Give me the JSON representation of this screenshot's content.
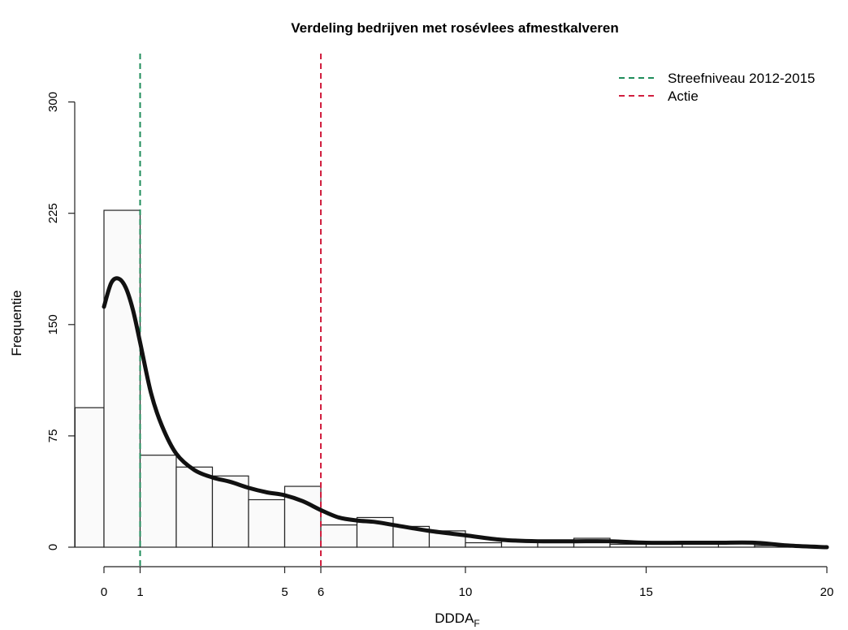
{
  "chart_data": {
    "type": "histogram",
    "title": "Verdeling bedrijven met rosévlees afmestkalveren",
    "xlabel": "DDDA",
    "xlabel_subscript": "F",
    "ylabel": "Frequentie",
    "xlim": [
      -0.5,
      20
    ],
    "ylim": [
      0,
      300
    ],
    "x_ticks": [
      0,
      1,
      5,
      6,
      10,
      15,
      20
    ],
    "y_ticks": [
      0,
      75,
      150,
      225,
      300
    ],
    "bins": [
      {
        "start": -0.8,
        "end": 0,
        "count": 94
      },
      {
        "start": 0,
        "end": 1,
        "count": 227
      },
      {
        "start": 1,
        "end": 2,
        "count": 62
      },
      {
        "start": 2,
        "end": 3,
        "count": 54
      },
      {
        "start": 3,
        "end": 4,
        "count": 48
      },
      {
        "start": 4,
        "end": 5,
        "count": 32
      },
      {
        "start": 5,
        "end": 6,
        "count": 41
      },
      {
        "start": 6,
        "end": 7,
        "count": 15
      },
      {
        "start": 7,
        "end": 8,
        "count": 20
      },
      {
        "start": 8,
        "end": 9,
        "count": 14
      },
      {
        "start": 9,
        "end": 10,
        "count": 11
      },
      {
        "start": 10,
        "end": 11,
        "count": 3
      },
      {
        "start": 11,
        "end": 12,
        "count": 4
      },
      {
        "start": 12,
        "end": 13,
        "count": 4
      },
      {
        "start": 13,
        "end": 14,
        "count": 6
      },
      {
        "start": 14,
        "end": 15,
        "count": 2
      },
      {
        "start": 15,
        "end": 16,
        "count": 2
      },
      {
        "start": 16,
        "end": 17,
        "count": 3
      },
      {
        "start": 17,
        "end": 18,
        "count": 4
      },
      {
        "start": 18,
        "end": 19,
        "count": 1
      },
      {
        "start": 19,
        "end": 20,
        "count": 0
      }
    ],
    "density_curve": {
      "x": [
        0,
        0.2,
        0.4,
        0.6,
        0.8,
        1.0,
        1.3,
        1.6,
        2.0,
        2.5,
        3.0,
        3.5,
        4.0,
        4.5,
        5.0,
        5.5,
        6.0,
        6.5,
        7.0,
        7.5,
        8.0,
        9.0,
        10.0,
        11.0,
        12.0,
        13.0,
        14.0,
        15.0,
        16.0,
        17.0,
        18.0,
        19.0,
        20.0
      ],
      "y": [
        162,
        178,
        181,
        175,
        160,
        138,
        104,
        82,
        63,
        52,
        47,
        44,
        40,
        37,
        35,
        31,
        25,
        20,
        18,
        17,
        15,
        11,
        8,
        5,
        4,
        4,
        4,
        3,
        3,
        3,
        3,
        1,
        0
      ]
    },
    "vlines": [
      {
        "x": 1,
        "label": "Streefniveau 2012-2015",
        "color": "#1e8c5a"
      },
      {
        "x": 6,
        "label": "Actie",
        "color": "#d11f3f"
      }
    ],
    "grid": false,
    "legend_position": "top-right"
  }
}
